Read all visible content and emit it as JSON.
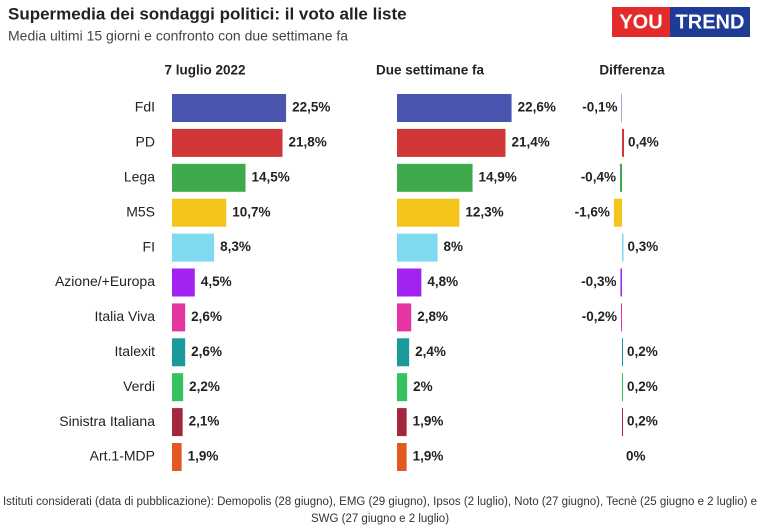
{
  "title": "Supermedia dei sondaggi politici: il voto alle liste",
  "subtitle": "Media ultimi 15 giorni e confronto con due settimane fa",
  "logo": [
    "YOU",
    "TREND"
  ],
  "footnote": "Istituti considerati (data di pubblicazione): Demopolis (28 giugno), EMG (29 giugno), Ipsos (2 luglio), Noto (27 giugno), Tecnè (25 giugno e 2 luglio) e SWG (27 giugno e 2 luglio)",
  "chart_data": {
    "type": "bar",
    "orientation": "horizontal",
    "categories": [
      "FdI",
      "PD",
      "Lega",
      "M5S",
      "FI",
      "Azione/+Europa",
      "Italia Viva",
      "Italexit",
      "Verdi",
      "Sinistra Italiana",
      "Art.1-MDP"
    ],
    "colors": [
      "#4a55b0",
      "#d13638",
      "#3eaa4b",
      "#f5c41a",
      "#7fd9ef",
      "#a223f0",
      "#e535a0",
      "#1b9a9c",
      "#35c25e",
      "#a3283c",
      "#e25a22"
    ],
    "series": [
      {
        "name": "7 luglio 2022",
        "values": [
          22.5,
          21.8,
          14.5,
          10.7,
          8.3,
          4.5,
          2.6,
          2.6,
          2.2,
          2.1,
          1.9
        ],
        "value_labels": [
          "22,5%",
          "21,8%",
          "14,5%",
          "10,7%",
          "8,3%",
          "4,5%",
          "2,6%",
          "2,6%",
          "2,2%",
          "2,1%",
          "1,9%"
        ]
      },
      {
        "name": "Due settimane fa",
        "values": [
          22.6,
          21.4,
          14.9,
          12.3,
          8,
          4.8,
          2.8,
          2.4,
          2,
          1.9,
          1.9
        ],
        "value_labels": [
          "22,6%",
          "21,4%",
          "14,9%",
          "12,3%",
          "8%",
          "4,8%",
          "2,8%",
          "2,4%",
          "2%",
          "1,9%",
          "1,9%"
        ]
      },
      {
        "name": "Differenza",
        "values": [
          -0.1,
          0.4,
          -0.4,
          -1.6,
          0.3,
          -0.3,
          -0.2,
          0.2,
          0.2,
          0.2,
          0
        ],
        "value_labels": [
          "-0,1%",
          "0,4%",
          "-0,4%",
          "-1,6%",
          "0,3%",
          "-0,3%",
          "-0,2%",
          "0,2%",
          "0,2%",
          "0,2%",
          "0%"
        ]
      }
    ]
  }
}
